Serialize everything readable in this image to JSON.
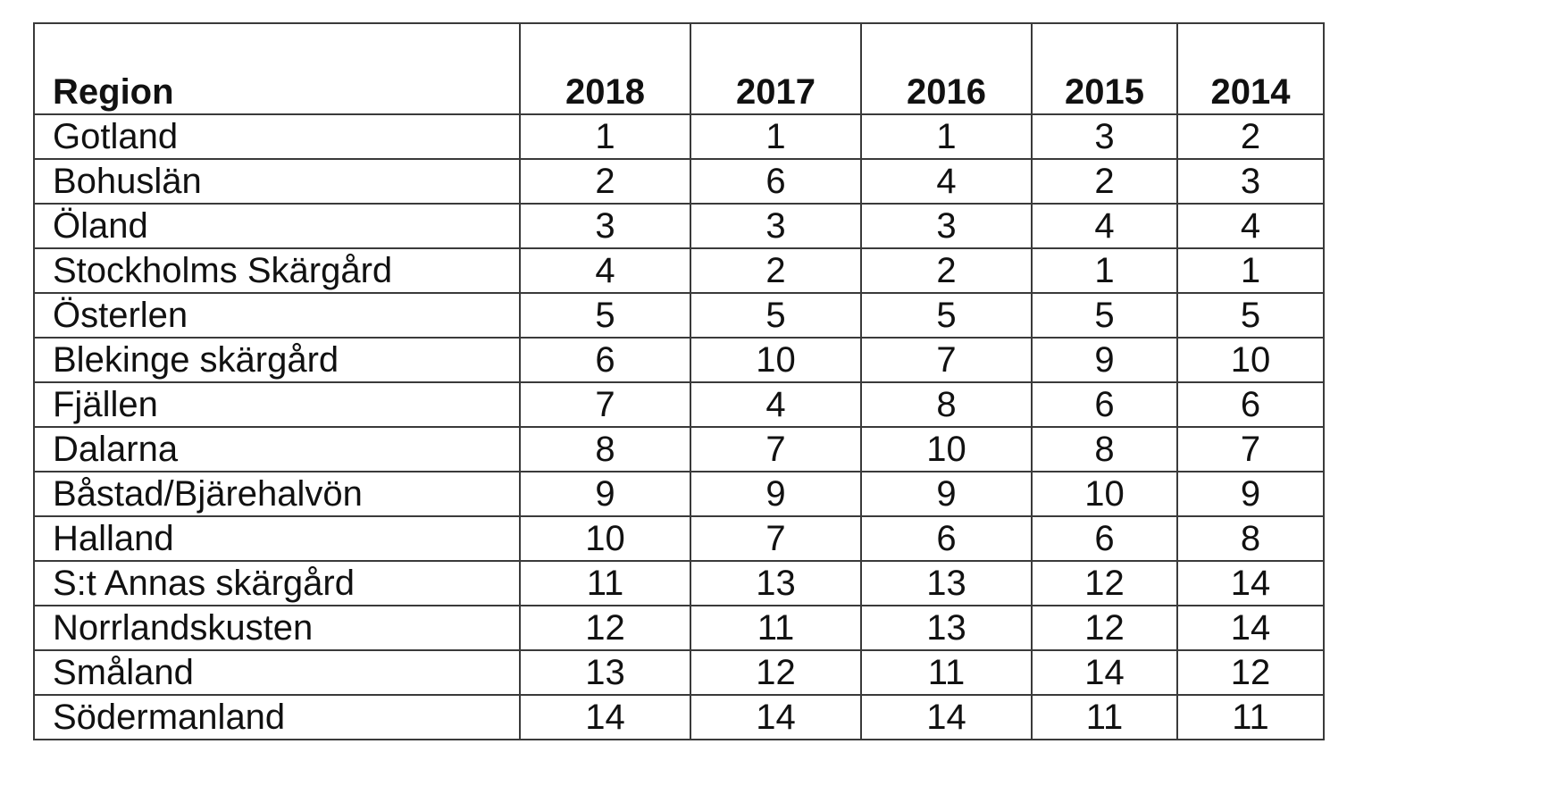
{
  "table": {
    "header": {
      "region": "Region",
      "years": [
        "2018",
        "2017",
        "2016",
        "2015",
        "2014"
      ]
    },
    "rows": [
      {
        "region": "Gotland",
        "values": [
          "1",
          "1",
          "1",
          "3",
          "2"
        ]
      },
      {
        "region": "Bohuslän",
        "values": [
          "2",
          "6",
          "4",
          "2",
          "3"
        ]
      },
      {
        "region": "Öland",
        "values": [
          "3",
          "3",
          "3",
          "4",
          "4"
        ]
      },
      {
        "region": "Stockholms Skärgård",
        "values": [
          "4",
          "2",
          "2",
          "1",
          "1"
        ]
      },
      {
        "region": "Österlen",
        "values": [
          "5",
          "5",
          "5",
          "5",
          "5"
        ]
      },
      {
        "region": "Blekinge skärgård",
        "values": [
          "6",
          "10",
          "7",
          "9",
          "10"
        ]
      },
      {
        "region": "Fjällen",
        "values": [
          "7",
          "4",
          "8",
          "6",
          "6"
        ]
      },
      {
        "region": "Dalarna",
        "values": [
          "8",
          "7",
          "10",
          "8",
          "7"
        ]
      },
      {
        "region": "Båstad/Bjärehalvön",
        "values": [
          "9",
          "9",
          "9",
          "10",
          "9"
        ]
      },
      {
        "region": "Halland",
        "values": [
          "10",
          "7",
          "6",
          "6",
          "8"
        ]
      },
      {
        "region": "S:t Annas skärgård",
        "values": [
          "11",
          "13",
          "13",
          "12",
          "14"
        ]
      },
      {
        "region": "Norrlandskusten",
        "values": [
          "12",
          "11",
          "13",
          "12",
          "14"
        ]
      },
      {
        "region": "Småland",
        "values": [
          "13",
          "12",
          "11",
          "14",
          "12"
        ]
      },
      {
        "region": "Södermanland",
        "values": [
          "14",
          "14",
          "14",
          "11",
          "11"
        ]
      }
    ]
  }
}
